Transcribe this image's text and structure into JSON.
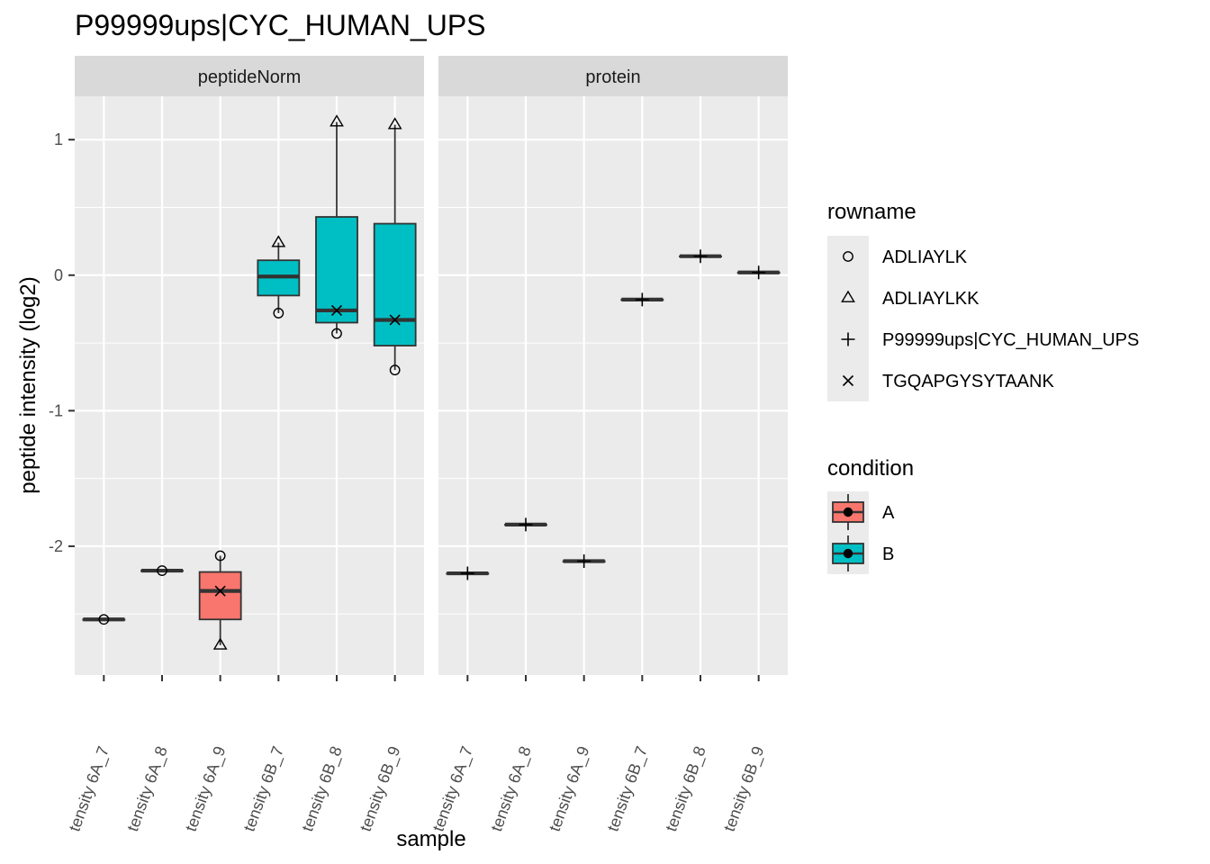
{
  "chart_data": {
    "type": "boxplot",
    "title": "P99999ups|CYC_HUMAN_UPS",
    "xlabel": "sample",
    "ylabel": "peptide intensity (log2)",
    "ylim": [
      -2.95,
      1.32
    ],
    "yticks": [
      1,
      0,
      -1,
      -2
    ],
    "ytick_labels": [
      "1",
      "0",
      "-1",
      "-2"
    ],
    "x_tick_labels": [
      "tensity 6A_7",
      "tensity 6A_8",
      "tensity 6A_9",
      "tensity 6B_7",
      "tensity 6B_8",
      "tensity 6B_9"
    ],
    "grid": true,
    "facets": [
      {
        "label": "peptideNorm",
        "boxes": [
          {
            "sample": "tensity 6A_7",
            "condition": "A",
            "q1": -2.54,
            "median": -2.54,
            "q3": -2.54,
            "lower": -2.54,
            "upper": -2.54
          },
          {
            "sample": "tensity 6A_8",
            "condition": "A",
            "q1": -2.18,
            "median": -2.18,
            "q3": -2.18,
            "lower": -2.18,
            "upper": -2.18
          },
          {
            "sample": "tensity 6A_9",
            "condition": "A",
            "q1": -2.54,
            "median": -2.33,
            "q3": -2.19,
            "lower": -2.73,
            "upper": -2.07
          },
          {
            "sample": "tensity 6B_7",
            "condition": "B",
            "q1": -0.15,
            "median": -0.01,
            "q3": 0.11,
            "lower": -0.28,
            "upper": 0.24
          },
          {
            "sample": "tensity 6B_8",
            "condition": "B",
            "q1": -0.35,
            "median": -0.26,
            "q3": 0.43,
            "lower": -0.43,
            "upper": 1.13
          },
          {
            "sample": "tensity 6B_9",
            "condition": "B",
            "q1": -0.52,
            "median": -0.33,
            "q3": 0.38,
            "lower": -0.7,
            "upper": 1.11
          }
        ],
        "points": [
          {
            "sample": "tensity 6A_7",
            "rowname": "ADLIAYLK",
            "y": -2.54
          },
          {
            "sample": "tensity 6A_8",
            "rowname": "ADLIAYLK",
            "y": -2.18
          },
          {
            "sample": "tensity 6A_9",
            "rowname": "ADLIAYLK",
            "y": -2.07
          },
          {
            "sample": "tensity 6A_9",
            "rowname": "ADLIAYLKK",
            "y": -2.73
          },
          {
            "sample": "tensity 6A_9",
            "rowname": "TGQAPGYSYTAANK",
            "y": -2.33
          },
          {
            "sample": "tensity 6B_7",
            "rowname": "ADLIAYLKK",
            "y": 0.24
          },
          {
            "sample": "tensity 6B_7",
            "rowname": "ADLIAYLK",
            "y": -0.28
          },
          {
            "sample": "tensity 6B_8",
            "rowname": "ADLIAYLKK",
            "y": 1.13
          },
          {
            "sample": "tensity 6B_8",
            "rowname": "TGQAPGYSYTAANK",
            "y": -0.26
          },
          {
            "sample": "tensity 6B_8",
            "rowname": "ADLIAYLK",
            "y": -0.43
          },
          {
            "sample": "tensity 6B_9",
            "rowname": "ADLIAYLKK",
            "y": 1.11
          },
          {
            "sample": "tensity 6B_9",
            "rowname": "TGQAPGYSYTAANK",
            "y": -0.33
          },
          {
            "sample": "tensity 6B_9",
            "rowname": "ADLIAYLK",
            "y": -0.7
          }
        ]
      },
      {
        "label": "protein",
        "boxes": [
          {
            "sample": "tensity 6A_7",
            "condition": "A",
            "q1": -2.2,
            "median": -2.2,
            "q3": -2.2,
            "lower": -2.2,
            "upper": -2.2
          },
          {
            "sample": "tensity 6A_8",
            "condition": "A",
            "q1": -1.84,
            "median": -1.84,
            "q3": -1.84,
            "lower": -1.84,
            "upper": -1.84
          },
          {
            "sample": "tensity 6A_9",
            "condition": "A",
            "q1": -2.11,
            "median": -2.11,
            "q3": -2.11,
            "lower": -2.11,
            "upper": -2.11
          },
          {
            "sample": "tensity 6B_7",
            "condition": "B",
            "q1": -0.18,
            "median": -0.18,
            "q3": -0.18,
            "lower": -0.18,
            "upper": -0.18
          },
          {
            "sample": "tensity 6B_8",
            "condition": "B",
            "q1": 0.14,
            "median": 0.14,
            "q3": 0.14,
            "lower": 0.14,
            "upper": 0.14
          },
          {
            "sample": "tensity 6B_9",
            "condition": "B",
            "q1": 0.02,
            "median": 0.02,
            "q3": 0.02,
            "lower": 0.02,
            "upper": 0.02
          }
        ],
        "points": [
          {
            "sample": "tensity 6A_7",
            "rowname": "P99999ups|CYC_HUMAN_UPS",
            "y": -2.2
          },
          {
            "sample": "tensity 6A_8",
            "rowname": "P99999ups|CYC_HUMAN_UPS",
            "y": -1.84
          },
          {
            "sample": "tensity 6A_9",
            "rowname": "P99999ups|CYC_HUMAN_UPS",
            "y": -2.11
          },
          {
            "sample": "tensity 6B_7",
            "rowname": "P99999ups|CYC_HUMAN_UPS",
            "y": -0.18
          },
          {
            "sample": "tensity 6B_8",
            "rowname": "P99999ups|CYC_HUMAN_UPS",
            "y": 0.14
          },
          {
            "sample": "tensity 6B_9",
            "rowname": "P99999ups|CYC_HUMAN_UPS",
            "y": 0.02
          }
        ]
      }
    ],
    "legends": [
      {
        "title": "rowname",
        "entries": [
          {
            "label": "ADLIAYLK",
            "shape": "circle"
          },
          {
            "label": "ADLIAYLKK",
            "shape": "triangle"
          },
          {
            "label": "P99999ups|CYC_HUMAN_UPS",
            "shape": "plus"
          },
          {
            "label": "TGQAPGYSYTAANK",
            "shape": "cross"
          }
        ]
      },
      {
        "title": "condition",
        "entries": [
          {
            "label": "A",
            "color": "#F8766D"
          },
          {
            "label": "B",
            "color": "#00BFC4"
          }
        ]
      }
    ],
    "legend_position": "right",
    "colors": {
      "A": "#F8766D",
      "B": "#00BFC4",
      "panel_bg": "#EBEBEB",
      "strip_bg": "#D9D9D9",
      "grid": "#FFFFFF",
      "box_outline": "#333333"
    }
  }
}
